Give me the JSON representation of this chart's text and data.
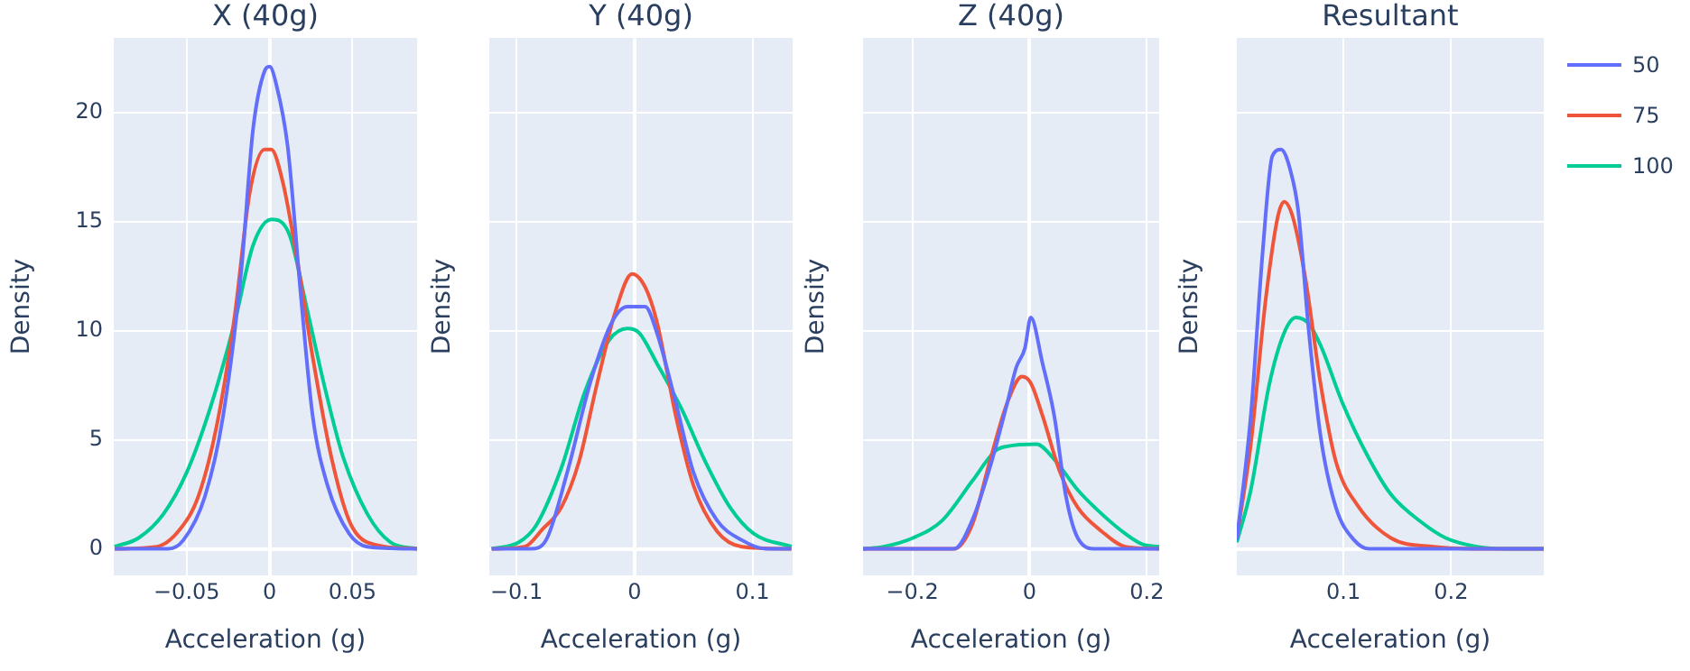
{
  "chart_data": [
    {
      "type": "line",
      "title": "X (40g)",
      "xlabel": "Acceleration (g)",
      "ylabel": "Density",
      "xlim": [
        -0.094,
        0.089
      ],
      "xticks": [
        {
          "value": -0.05,
          "label": "−0.05"
        },
        0,
        0.05
      ],
      "ylim": [
        -1.2,
        23.4
      ],
      "yticks": [
        0,
        5,
        10,
        15,
        20
      ],
      "grid": true,
      "legend": false,
      "marker": "none",
      "line_style": "solid",
      "series": [
        {
          "color": "#636efa",
          "x": [
            -0.0935,
            -0.061,
            -0.052,
            -0.039,
            -0.028,
            -0.017,
            -0.01,
            -0.003,
            0,
            0.004,
            0.011,
            0.019,
            0.026,
            0.035,
            0.048,
            0.059,
            0.089
          ],
          "values": [
            0,
            0,
            0.4,
            2.4,
            6.1,
            12.8,
            19.2,
            21.9,
            22.1,
            21.3,
            18.4,
            11.5,
            6.1,
            2.9,
            0.7,
            0.1,
            0
          ]
        },
        {
          "color": "#ef553b",
          "x": [
            -0.0935,
            -0.068,
            -0.054,
            -0.043,
            -0.032,
            -0.021,
            -0.012,
            -0.003,
            0.001,
            0.008,
            0.017,
            0.026,
            0.037,
            0.048,
            0.059,
            0.089
          ],
          "values": [
            0,
            0.1,
            0.9,
            2.4,
            5.6,
            10.7,
            16.3,
            18.3,
            18.3,
            16.8,
            13.1,
            8.8,
            4.3,
            1.3,
            0.3,
            0
          ]
        },
        {
          "color": "#00cc96",
          "x": [
            -0.0935,
            -0.079,
            -0.064,
            -0.05,
            -0.036,
            -0.021,
            -0.01,
            0.001,
            0.012,
            0.022,
            0.033,
            0.044,
            0.059,
            0.073,
            0.089
          ],
          "values": [
            0.1,
            0.5,
            1.6,
            3.5,
            6.4,
            10.4,
            13.9,
            15.1,
            14.4,
            11.2,
            7.5,
            4.3,
            1.6,
            0.3,
            0
          ]
        }
      ]
    },
    {
      "type": "line",
      "title": "Y (40g)",
      "xlabel": "Acceleration (g)",
      "ylabel": "Density",
      "xlim": [
        -0.123,
        0.134
      ],
      "xticks": [
        {
          "value": -0.1,
          "label": "−0.1"
        },
        0,
        0.1
      ],
      "ylim": [
        -1.2,
        23.4
      ],
      "yticks": [
        0,
        5,
        10,
        15,
        20
      ],
      "tick_labels": "x",
      "grid": true,
      "legend": false,
      "marker": "none",
      "line_style": "solid",
      "series": [
        {
          "color": "#636efa",
          "x": [
            -0.121,
            -0.088,
            -0.075,
            -0.057,
            -0.037,
            -0.019,
            -0.006,
            0.009,
            0.019,
            0.035,
            0.05,
            0.07,
            0.091,
            0.111,
            0.133
          ],
          "values": [
            0,
            0,
            0.4,
            3.5,
            7.7,
            10.4,
            11.1,
            11.1,
            9.9,
            6.7,
            3.5,
            1.3,
            0.4,
            0,
            0
          ]
        },
        {
          "color": "#ef553b",
          "x": [
            -0.121,
            -0.093,
            -0.078,
            -0.062,
            -0.047,
            -0.032,
            -0.016,
            -0.002,
            0.009,
            0.019,
            0.035,
            0.05,
            0.07,
            0.091,
            0.133
          ],
          "values": [
            0,
            0.1,
            0.9,
            1.9,
            4,
            7.5,
            10.9,
            12.6,
            12,
            10.4,
            6.1,
            2.9,
            0.8,
            0.1,
            0
          ]
        },
        {
          "color": "#00cc96",
          "x": [
            -0.121,
            -0.098,
            -0.083,
            -0.062,
            -0.042,
            -0.021,
            -0.006,
            0.004,
            0.019,
            0.04,
            0.06,
            0.081,
            0.101,
            0.133
          ],
          "values": [
            0,
            0.3,
            1.1,
            3.7,
            7.2,
            9.6,
            10.1,
            9.9,
            8.5,
            6.4,
            4,
            1.9,
            0.7,
            0.1
          ]
        }
      ]
    },
    {
      "type": "line",
      "title": "Z (40g)",
      "xlabel": "Acceleration (g)",
      "ylabel": "Density",
      "xlim": [
        -0.284,
        0.221
      ],
      "xticks": [
        {
          "value": -0.2,
          "label": "−0.2"
        },
        0,
        0.2
      ],
      "ylim": [
        -1.2,
        23.4
      ],
      "yticks": [
        0,
        5,
        10,
        15,
        20
      ],
      "tick_labels": "x",
      "grid": true,
      "legend": false,
      "marker": "none",
      "line_style": "solid",
      "series": [
        {
          "color": "#636efa",
          "x": [
            -0.284,
            -0.129,
            -0.098,
            -0.068,
            -0.038,
            -0.023,
            -0.008,
            0.002,
            0.022,
            0.042,
            0.062,
            0.082,
            0.113,
            0.221
          ],
          "values": [
            0,
            0,
            1.3,
            3.7,
            6.7,
            8.3,
            9.2,
            10.6,
            8.5,
            6.1,
            2.4,
            0.5,
            0,
            0
          ]
        },
        {
          "color": "#ef553b",
          "x": [
            -0.284,
            -0.129,
            -0.098,
            -0.068,
            -0.038,
            -0.013,
            0.002,
            0.022,
            0.052,
            0.082,
            0.123,
            0.163,
            0.221
          ],
          "values": [
            0,
            0,
            1.1,
            4,
            6.7,
            7.9,
            7.6,
            6.1,
            3.5,
            1.9,
            0.8,
            0.1,
            0
          ]
        },
        {
          "color": "#00cc96",
          "x": [
            -0.284,
            -0.249,
            -0.199,
            -0.149,
            -0.098,
            -0.058,
            -0.038,
            0.012,
            0.042,
            0.082,
            0.123,
            0.163,
            0.193,
            0.221
          ],
          "values": [
            0,
            0.1,
            0.5,
            1.3,
            3.1,
            4.5,
            4.7,
            4.8,
            4.1,
            2.7,
            1.6,
            0.7,
            0.2,
            0.1
          ]
        }
      ]
    },
    {
      "type": "line",
      "title": "Resultant",
      "xlabel": "Acceleration (g)",
      "ylabel": "Density",
      "xlim": [
        0.001,
        0.286
      ],
      "xticks": [
        0.1,
        0.2
      ],
      "ylim": [
        -1.2,
        23.4
      ],
      "yticks": [
        0,
        5,
        10,
        15,
        20
      ],
      "tick_labels": "x",
      "grid": true,
      "legend": "right",
      "marker": "none",
      "line_style": "solid",
      "series": [
        {
          "name": "50",
          "color": "#636efa",
          "x": [
            0.001,
            0.014,
            0.025,
            0.034,
            0.042,
            0.051,
            0.058,
            0.068,
            0.079,
            0.093,
            0.11,
            0.124,
            0.286
          ],
          "values": [
            0.4,
            6.1,
            13.6,
            18,
            18.3,
            17.3,
            15.5,
            9.9,
            5.1,
            1.9,
            0.4,
            0,
            0
          ]
        },
        {
          "name": "75",
          "color": "#ef553b",
          "x": [
            0.001,
            0.014,
            0.028,
            0.039,
            0.045,
            0.053,
            0.065,
            0.079,
            0.093,
            0.113,
            0.144,
            0.184,
            0.235,
            0.286
          ],
          "values": [
            0.5,
            4.8,
            11.5,
            15.2,
            15.9,
            15.2,
            12.3,
            7.5,
            4,
            2,
            0.5,
            0.1,
            0,
            0
          ]
        },
        {
          "name": "100",
          "color": "#00cc96",
          "x": [
            0.001,
            0.014,
            0.031,
            0.045,
            0.056,
            0.068,
            0.079,
            0.099,
            0.122,
            0.144,
            0.173,
            0.195,
            0.224,
            0.252,
            0.286
          ],
          "values": [
            0.3,
            2.7,
            7.5,
            9.9,
            10.6,
            10.3,
            9.3,
            6.7,
            4.3,
            2.5,
            1.2,
            0.5,
            0.1,
            0,
            0
          ]
        }
      ]
    }
  ]
}
